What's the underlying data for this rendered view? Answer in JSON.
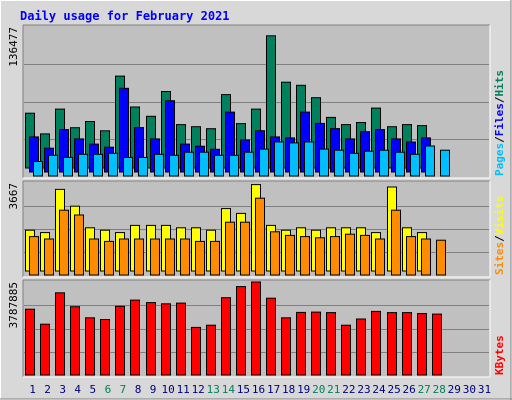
{
  "chart_data": {
    "title": "Daily usage for February 2021",
    "days": [
      "1",
      "2",
      "3",
      "4",
      "5",
      "6",
      "7",
      "8",
      "9",
      "10",
      "11",
      "12",
      "13",
      "14",
      "15",
      "16",
      "17",
      "18",
      "19",
      "20",
      "21",
      "22",
      "23",
      "24",
      "25",
      "26",
      "27",
      "28",
      "29",
      "30",
      "31"
    ],
    "weekend_days": [
      6,
      7,
      13,
      14,
      20,
      21,
      27,
      28
    ],
    "panels": [
      {
        "type": "bar",
        "max_label": "136477",
        "ymax": 136477,
        "side_labels": [
          "Pages",
          "/",
          "Files",
          "/",
          "Hits"
        ],
        "series": [
          {
            "name": "Hits",
            "color": "#00805c",
            "values": [
              53000,
              33000,
              57000,
              39000,
              45000,
              36000,
              89000,
              59000,
              50000,
              74000,
              42000,
              40000,
              38000,
              71000,
              43000,
              57000,
              128000,
              83000,
              80000,
              68000,
              49000,
              42000,
              44000,
              58000,
              40000,
              42000,
              41000,
              0,
              0,
              0,
              0
            ]
          },
          {
            "name": "Files",
            "color": "#0000ff",
            "values": [
              34000,
              23000,
              41000,
              32000,
              27000,
              24000,
              81000,
              43000,
              32000,
              69000,
              27000,
              25000,
              22000,
              58000,
              31000,
              40000,
              34000,
              33000,
              58000,
              47000,
              42000,
              32000,
              39000,
              41000,
              32000,
              29000,
              33000,
              0,
              0,
              0,
              0
            ]
          },
          {
            "name": "Pages",
            "color": "#00bfff",
            "values": [
              14000,
              20000,
              18000,
              21000,
              21000,
              22000,
              18000,
              18000,
              21000,
              20000,
              23000,
              23000,
              20000,
              20000,
              23000,
              26000,
              33000,
              32000,
              33000,
              26000,
              25000,
              22000,
              24000,
              25000,
              23000,
              21000,
              29000,
              25000,
              0,
              0,
              0
            ]
          }
        ]
      },
      {
        "type": "bar",
        "max_label": "3667",
        "ymax": 3667,
        "side_labels": [
          "Sites",
          "/",
          "Visits"
        ],
        "series": [
          {
            "name": "Visits",
            "color": "#ffff00",
            "values": [
              1700,
              1600,
              3400,
              2700,
              1800,
              1700,
              1600,
              1900,
              1900,
              1900,
              1800,
              1800,
              1700,
              2600,
              2400,
              3600,
              1900,
              1700,
              1800,
              1700,
              1800,
              1800,
              1800,
              1600,
              3500,
              1800,
              1600,
              0,
              0,
              0,
              0
            ]
          },
          {
            "name": "Sites",
            "color": "#ff8c00",
            "values": [
              1600,
              1500,
              2700,
              2500,
              1500,
              1400,
              1500,
              1500,
              1500,
              1500,
              1500,
              1400,
              1400,
              2200,
              2200,
              3200,
              1800,
              1650,
              1600,
              1550,
              1600,
              1700,
              1650,
              1500,
              2700,
              1600,
              1500,
              1450,
              0,
              0,
              0
            ]
          }
        ]
      },
      {
        "type": "bar",
        "max_label": "3787885",
        "ymax": 3787885,
        "side_labels": [
          "KBytes"
        ],
        "series": [
          {
            "name": "KBytes",
            "color": "#ff0000",
            "values": [
              2680000,
              2070000,
              3350000,
              2780000,
              2330000,
              2260000,
              2800000,
              3050000,
              2950000,
              2900000,
              2930000,
              1940000,
              2030000,
              3150000,
              3600000,
              3787885,
              3130000,
              2330000,
              2550000,
              2560000,
              2540000,
              2030000,
              2280000,
              2590000,
              2540000,
              2540000,
              2500000,
              2480000,
              0,
              0,
              0
            ]
          }
        ]
      }
    ],
    "colors": {
      "background": "#d8d8d8",
      "plot_bg": "#c0c0c0",
      "title": "#0000ff",
      "day_label": "#000080",
      "weekend_label": "#00805c",
      "grid": "#808080",
      "bar_outline": "#000000"
    }
  }
}
